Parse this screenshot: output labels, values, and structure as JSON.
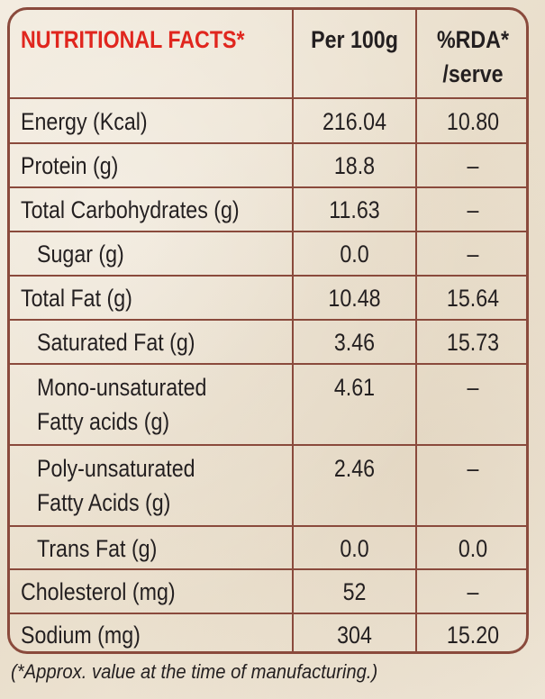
{
  "header": {
    "title": "NUTRITIONAL FACTS*",
    "per100g": "Per 100g",
    "rda_line1": "%RDA*",
    "rda_line2": "/serve"
  },
  "rows": [
    {
      "name": "Energy (Kcal)",
      "per100g": "216.04",
      "rda": "10.80"
    },
    {
      "name": "Protein (g)",
      "per100g": "18.8",
      "rda": "–"
    },
    {
      "name": "Total Carbohydrates (g)",
      "per100g": "11.63",
      "rda": "–"
    },
    {
      "name": "Sugar (g)",
      "per100g": "0.0",
      "rda": "–"
    },
    {
      "name": "Total Fat (g)",
      "per100g": "10.48",
      "rda": "15.64"
    },
    {
      "name": "Saturated Fat (g)",
      "per100g": "3.46",
      "rda": "15.73"
    },
    {
      "name_line1": "Mono-unsaturated",
      "name_line2": "Fatty acids (g)",
      "per100g": "4.61",
      "rda": "–"
    },
    {
      "name_line1": "Poly-unsaturated",
      "name_line2": "Fatty Acids (g)",
      "per100g": "2.46",
      "rda": "–"
    },
    {
      "name": "Trans Fat (g)",
      "per100g": "0.0",
      "rda": "0.0"
    },
    {
      "name": "Cholesterol (mg)",
      "per100g": "52",
      "rda": "–"
    },
    {
      "name": "Sodium (mg)",
      "per100g": "304",
      "rda": "15.20"
    }
  ],
  "footnote": "(*Approx. value at the time of manufacturing.)"
}
